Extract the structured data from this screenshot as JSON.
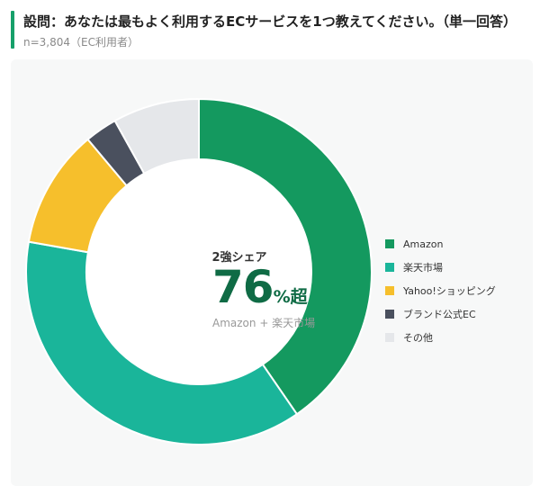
{
  "header": {
    "question": "設問：あなたは最もよく利用するECサービスを1つ教えてください。（単一回答）",
    "sample": "n=3,804（EC利用者）"
  },
  "center": {
    "label": "2強シェア",
    "value": "76",
    "suffix": "%超",
    "sub": "Amazon + 楽天市場"
  },
  "colors": {
    "amazon": "#14995f",
    "rakuten": "#1ab59a",
    "yahoo": "#f6bf2c",
    "brand": "#4a505e",
    "other": "#e5e7ea"
  },
  "chart_data": {
    "type": "pie",
    "donut": true,
    "categories": [
      "Amazon",
      "楽天市場",
      "Yahoo!ショッピング",
      "ブランド公式EC",
      "その他"
    ],
    "values": [
      40,
      37,
      11,
      3,
      8
    ],
    "colors": [
      "#14995f",
      "#1ab59a",
      "#f6bf2c",
      "#4a505e",
      "#e5e7ea"
    ],
    "start": "top, clockwise",
    "legend_position": "right"
  }
}
